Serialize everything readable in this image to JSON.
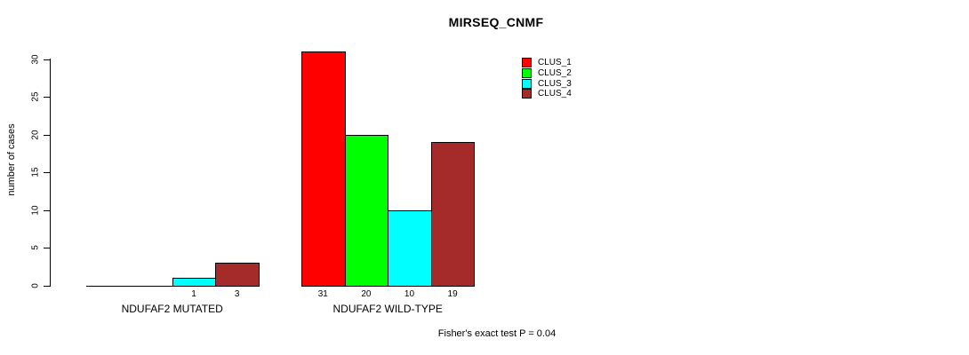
{
  "chart_data": {
    "type": "bar",
    "title": "MIRSEQ_CNMF",
    "ylabel": "number of cases",
    "footer_note": "Fisher's exact test P = 0.04",
    "ylim": [
      0,
      31
    ],
    "yticks": [
      0,
      5,
      10,
      15,
      20,
      25,
      30
    ],
    "grid": false,
    "legend_position": "top-right",
    "value_labels": "shown under each non-zero bar",
    "shown_value_labels": [
      "1",
      "3",
      "31",
      "20",
      "10",
      "19"
    ],
    "series": [
      {
        "name": "CLUS_1",
        "color": "#FF0000"
      },
      {
        "name": "CLUS_2",
        "color": "#00FF00"
      },
      {
        "name": "CLUS_3",
        "color": "#00FFFF"
      },
      {
        "name": "CLUS_4",
        "color": "#A52A2A"
      }
    ],
    "groups": [
      {
        "label": "NDUFAF2 MUTATED",
        "values": [
          0,
          0,
          1,
          3
        ]
      },
      {
        "label": "NDUFAF2 WILD-TYPE",
        "values": [
          31,
          20,
          10,
          19
        ]
      }
    ]
  }
}
